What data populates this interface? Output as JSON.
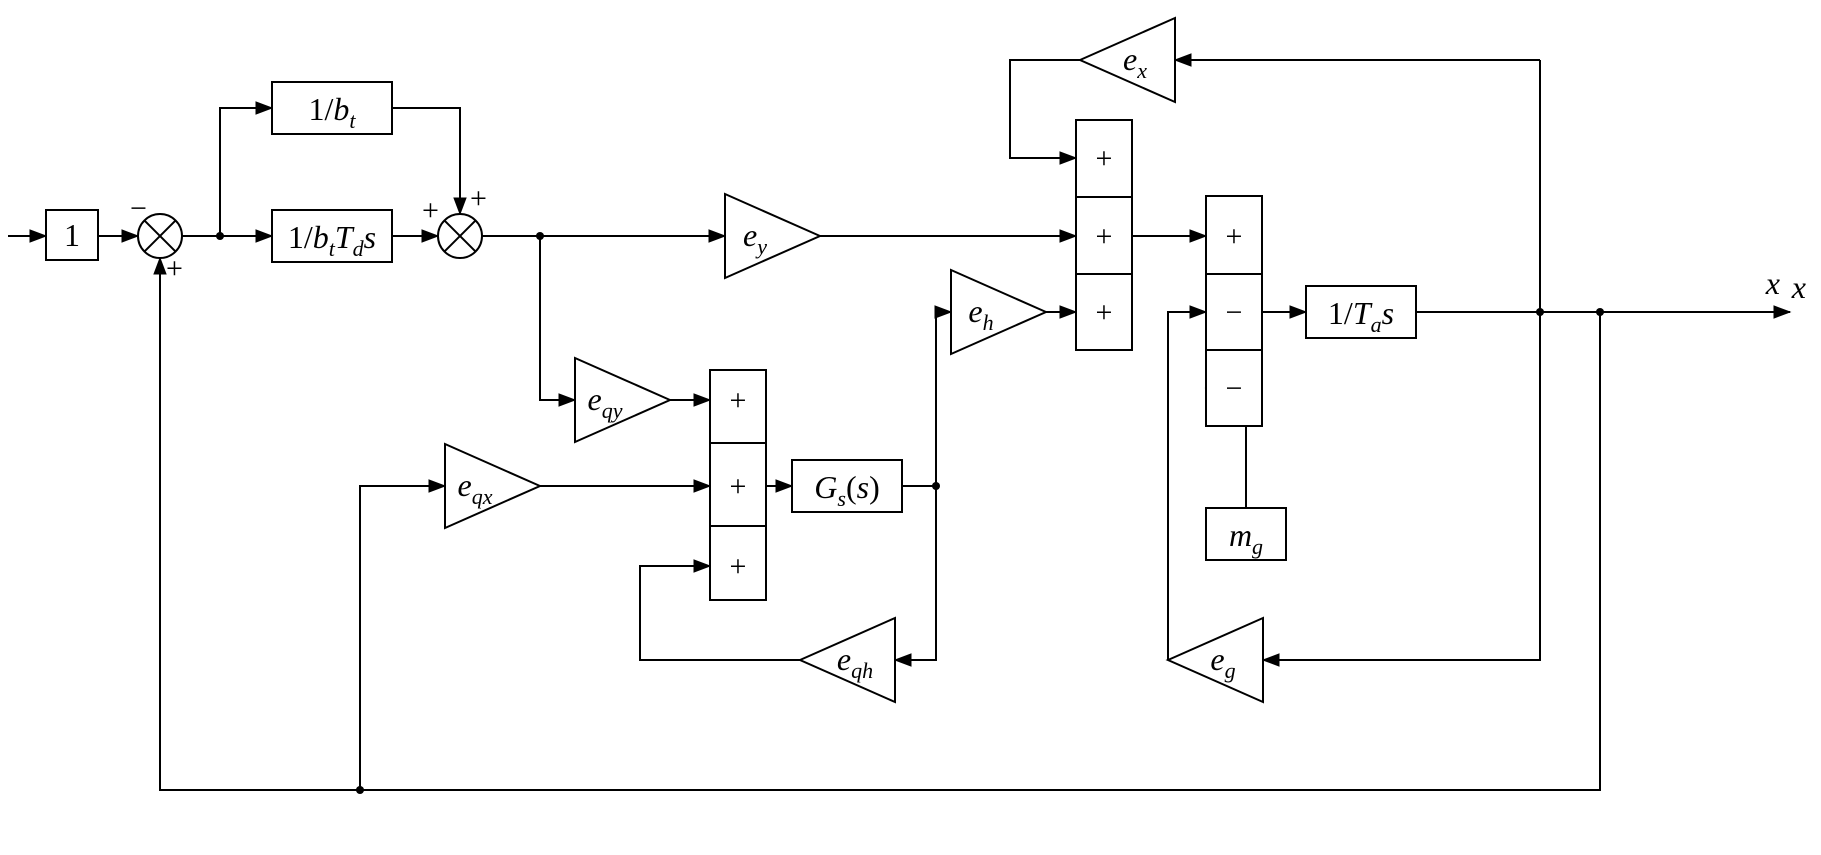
{
  "diagram": {
    "type": "block-diagram",
    "background_color": "#ffffff",
    "stroke_color": "#000000",
    "stroke_width": 2,
    "font_family": "Times New Roman",
    "font_size_pt": 32,
    "output_label": "x",
    "blocks": {
      "one": {
        "label": "1"
      },
      "inv_bt": {
        "label_tokens": [
          "1/",
          "b",
          "t"
        ]
      },
      "inv_btTds": {
        "label_tokens": [
          "1/",
          "b",
          "t",
          "T",
          "d",
          "s"
        ]
      },
      "Gs": {
        "label_tokens": [
          "G",
          "s",
          "(",
          "s",
          ")"
        ]
      },
      "inv_Tas": {
        "label_tokens": [
          "1/",
          "T",
          "a",
          "s"
        ]
      },
      "mg": {
        "label_tokens": [
          "m",
          "g"
        ]
      }
    },
    "gains": {
      "ey": {
        "label_tokens": [
          "e",
          "y"
        ],
        "direction": "right"
      },
      "eqy": {
        "label_tokens": [
          "e",
          "qy"
        ],
        "direction": "right"
      },
      "eqx": {
        "label_tokens": [
          "e",
          "qx"
        ],
        "direction": "right"
      },
      "eh": {
        "label_tokens": [
          "e",
          "h"
        ],
        "direction": "right"
      },
      "eqh": {
        "label_tokens": [
          "e",
          "qh"
        ],
        "direction": "left"
      },
      "ex": {
        "label_tokens": [
          "e",
          "x"
        ],
        "direction": "left"
      },
      "eg": {
        "label_tokens": [
          "e",
          "g"
        ],
        "direction": "left"
      }
    },
    "summers": {
      "circle1": {
        "ports": [
          {
            "side": "left",
            "sign": "-"
          },
          {
            "side": "bottom",
            "sign": "+"
          }
        ]
      },
      "circle2": {
        "ports": [
          {
            "side": "left",
            "sign": "+"
          },
          {
            "side": "top",
            "sign": "+"
          }
        ]
      },
      "sum_box_left": {
        "signs": [
          "+",
          "+",
          "+"
        ]
      },
      "sum_box_mid": {
        "signs": [
          "+",
          "+",
          "+"
        ]
      },
      "sum_box_right": {
        "signs": [
          "+",
          "-",
          "-"
        ]
      }
    },
    "arrow_head": {
      "length": 16,
      "half_width": 6
    }
  }
}
